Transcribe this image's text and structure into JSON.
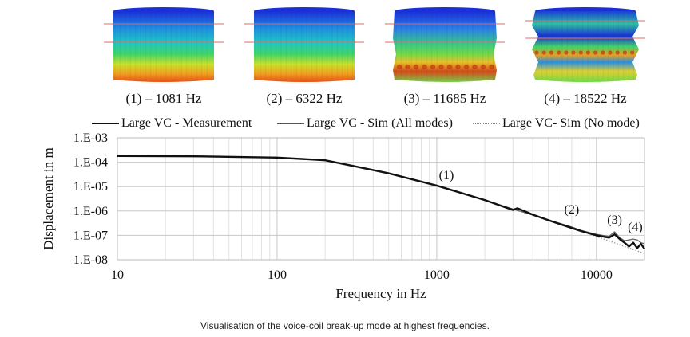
{
  "modes": [
    {
      "label": "(1) – 1081 Hz",
      "type": "mode1"
    },
    {
      "label": "(2) – 6322 Hz",
      "type": "mode2"
    },
    {
      "label": "(3) – 11685 Hz",
      "type": "mode3"
    },
    {
      "label": "(4) – 18522 Hz",
      "type": "mode4"
    }
  ],
  "caption": "Visualisation of the voice-coil break-up mode at highest frequencies.",
  "colors": {
    "measurement": "#111111",
    "sim_all": "#666666",
    "sim_none": "#999999"
  },
  "chart_data": {
    "type": "line",
    "title": "",
    "xlabel": "Frequency in Hz",
    "ylabel": "Displacement in m",
    "xscale": "log",
    "yscale": "log",
    "xlim": [
      10,
      20000
    ],
    "ylim": [
      1e-08,
      0.001
    ],
    "xticks": [
      10,
      100,
      1000,
      10000
    ],
    "xtick_labels": [
      "10",
      "100",
      "1000",
      "10000"
    ],
    "yticks": [
      0.001,
      0.0001,
      1e-05,
      1e-06,
      1e-07,
      1e-08
    ],
    "ytick_labels": [
      "1.E-03",
      "1.E-04",
      "1.E-05",
      "1.E-06",
      "1.E-07",
      "1.E-08"
    ],
    "grid": true,
    "legend_position": "top",
    "series": [
      {
        "name": "Large VC - Measurement",
        "style": "solid-thick",
        "x": [
          10,
          30,
          100,
          200,
          300,
          500,
          1000,
          2000,
          3000,
          3200,
          4000,
          5000,
          6000,
          7000,
          8000,
          10000,
          12000,
          13000,
          14000,
          15000,
          16000,
          17000,
          18000,
          19000,
          20000
        ],
        "y": [
          0.00018,
          0.000175,
          0.000155,
          0.00012,
          7e-05,
          3.5e-05,
          1.1e-05,
          2.8e-06,
          1.1e-06,
          1.3e-06,
          7e-07,
          4.2e-07,
          2.8e-07,
          2e-07,
          1.5e-07,
          1e-07,
          8e-08,
          1.1e-07,
          7e-08,
          5e-08,
          3.5e-08,
          5e-08,
          3e-08,
          4.5e-08,
          2.8e-08
        ]
      },
      {
        "name": "Large VC - Sim (All modes)",
        "style": "solid-thin",
        "x": [
          10,
          30,
          100,
          200,
          300,
          500,
          1000,
          2000,
          3000,
          4000,
          5000,
          6000,
          7000,
          8000,
          10000,
          12000,
          13000,
          14000,
          15000,
          17000,
          18000,
          19000,
          20000
        ],
        "y": [
          0.00018,
          0.000175,
          0.000155,
          0.00012,
          7e-05,
          3.5e-05,
          1.1e-05,
          2.8e-06,
          1.2e-06,
          6.8e-07,
          4.3e-07,
          3e-07,
          2.2e-07,
          1.6e-07,
          1.1e-07,
          9e-08,
          1.4e-07,
          8e-08,
          6e-08,
          7e-08,
          6.5e-08,
          5e-08,
          4.5e-08
        ]
      },
      {
        "name": "Large VC- Sim  (No mode)",
        "style": "dotted",
        "x": [
          10,
          30,
          100,
          200,
          300,
          500,
          1000,
          2000,
          3000,
          5000,
          10000,
          15000,
          20000
        ],
        "y": [
          0.00018,
          0.000175,
          0.000155,
          0.00012,
          7e-05,
          3.5e-05,
          1.1e-05,
          2.8e-06,
          1.2e-06,
          4.2e-07,
          9e-08,
          3.5e-08,
          1.8e-08
        ]
      }
    ],
    "annotations": [
      {
        "text": "(1)",
        "x": 1150,
        "y": 2e-05
      },
      {
        "text": "(2)",
        "x": 7000,
        "y": 8e-07
      },
      {
        "text": "(3)",
        "x": 13000,
        "y": 3e-07
      },
      {
        "text": "(4)",
        "x": 17500,
        "y": 1.5e-07
      }
    ]
  }
}
